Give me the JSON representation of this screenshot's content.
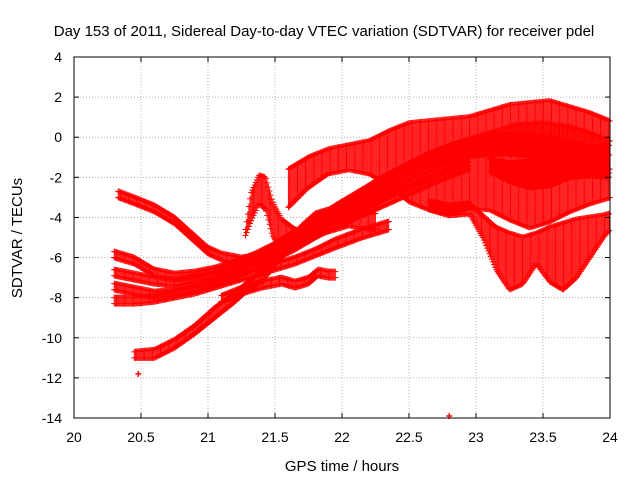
{
  "chart_data": {
    "type": "scatter",
    "title": "Day 153 of 2011, Sidereal Day-to-day VTEC variation (SDTVAR) for receiver pdel",
    "xlabel": "GPS time / hours",
    "ylabel": "SDTVAR / TECUs",
    "xlim": [
      20,
      24
    ],
    "ylim": [
      -14,
      4
    ],
    "xticks": [
      "20",
      "20.5",
      "21",
      "21.5",
      "22",
      "22.5",
      "23",
      "23.5",
      "24"
    ],
    "yticks": [
      "4",
      "2",
      "0",
      "-2",
      "-4",
      "-6",
      "-8",
      "-10",
      "-12",
      "-14"
    ],
    "grid": true,
    "legend": "none",
    "marker": "plus",
    "colors": {
      "series": "#ff0000",
      "grid": "#a0a0a0"
    },
    "tracks": [
      {
        "x": [
          20.33,
          20.45,
          20.6,
          20.75,
          20.9,
          21.0,
          21.1,
          21.25,
          21.45,
          21.6,
          21.75,
          21.9,
          22.05,
          22.25,
          22.45,
          22.65,
          22.85,
          23.0,
          23.2,
          23.4,
          23.6,
          23.8,
          24.0
        ],
        "lo": [
          -3.0,
          -3.3,
          -3.7,
          -4.3,
          -5.2,
          -5.8,
          -6.1,
          -6.4,
          -6.2,
          -5.6,
          -5.0,
          -4.3,
          -3.6,
          -2.8,
          -2.0,
          -1.4,
          -1.0,
          -0.9,
          -0.8,
          -0.9,
          -1.1,
          -1.4,
          -1.8
        ],
        "hi": [
          -2.7,
          -3.0,
          -3.4,
          -4.0,
          -4.9,
          -5.5,
          -5.8,
          -6.0,
          -5.8,
          -5.2,
          -4.6,
          -3.9,
          -3.1,
          -2.3,
          -1.5,
          -0.8,
          -0.3,
          -0.1,
          0.1,
          0.1,
          -0.1,
          -0.4,
          -0.9
        ]
      },
      {
        "x": [
          20.3,
          20.45,
          20.6,
          20.75,
          20.9,
          21.05,
          21.2,
          21.35,
          21.5,
          21.65,
          21.8,
          21.95,
          22.1,
          22.3,
          22.5,
          22.7,
          22.9,
          23.1,
          23.3,
          23.5,
          23.7,
          23.85,
          24.0
        ],
        "lo": [
          -6.0,
          -6.3,
          -6.9,
          -7.1,
          -7.0,
          -6.8,
          -6.5,
          -6.1,
          -5.6,
          -5.0,
          -4.4,
          -3.8,
          -3.2,
          -2.5,
          -1.8,
          -1.2,
          -0.7,
          -0.4,
          -0.3,
          -0.6,
          -1.0,
          -1.3,
          -1.6
        ],
        "hi": [
          -5.7,
          -6.0,
          -6.6,
          -6.8,
          -6.7,
          -6.5,
          -6.2,
          -5.8,
          -5.3,
          -4.7,
          -4.1,
          -3.4,
          -2.8,
          -2.0,
          -1.3,
          -0.7,
          -0.2,
          0.2,
          0.6,
          0.7,
          0.5,
          0.2,
          -0.2
        ]
      },
      {
        "x": [
          20.3,
          20.45,
          20.6,
          20.75,
          20.9,
          21.05,
          21.2,
          21.35,
          21.5,
          21.65,
          21.8,
          21.95,
          22.15,
          22.35,
          22.55,
          22.75,
          22.95
        ],
        "lo": [
          -6.9,
          -7.1,
          -7.3,
          -7.4,
          -7.2,
          -7.0,
          -6.7,
          -6.3,
          -5.8,
          -5.3,
          -4.7,
          -4.2,
          -3.7,
          -3.0,
          -2.4,
          -1.8,
          -1.4
        ],
        "hi": [
          -6.6,
          -6.8,
          -7.0,
          -7.1,
          -6.9,
          -6.7,
          -6.4,
          -6.0,
          -5.5,
          -5.0,
          -4.4,
          -3.8,
          -3.3,
          -2.6,
          -2.0,
          -1.4,
          -1.0
        ]
      },
      {
        "x": [
          20.3,
          20.45,
          20.6,
          20.75,
          20.9,
          21.05,
          21.2,
          21.35,
          21.5,
          21.65,
          21.8,
          21.95,
          22.15,
          22.35,
          22.55,
          22.75,
          22.95
        ],
        "lo": [
          -7.6,
          -7.8,
          -8.0,
          -7.9,
          -7.7,
          -7.4,
          -7.0,
          -6.6,
          -6.1,
          -5.6,
          -5.0,
          -4.5,
          -3.9,
          -3.3,
          -2.7,
          -2.1,
          -1.6
        ],
        "hi": [
          -7.3,
          -7.5,
          -7.7,
          -7.6,
          -7.4,
          -7.1,
          -6.7,
          -6.3,
          -5.8,
          -5.3,
          -4.7,
          -4.1,
          -3.5,
          -2.9,
          -2.3,
          -1.7,
          -1.2
        ]
      },
      {
        "x": [
          20.3,
          20.45,
          20.6,
          20.75,
          20.9,
          21.05,
          21.2,
          21.35,
          21.5,
          21.65,
          21.8,
          21.95,
          22.15,
          22.35
        ],
        "lo": [
          -8.3,
          -8.3,
          -8.2,
          -8.0,
          -7.8,
          -7.5,
          -7.2,
          -6.9,
          -6.6,
          -6.3,
          -5.9,
          -5.5,
          -5.0,
          -4.6
        ],
        "hi": [
          -8.0,
          -8.0,
          -7.9,
          -7.7,
          -7.5,
          -7.2,
          -6.9,
          -6.6,
          -6.3,
          -6.0,
          -5.6,
          -5.1,
          -4.6,
          -4.2
        ]
      },
      {
        "x": [
          20.45,
          20.6,
          20.75,
          20.9,
          21.05,
          21.2,
          21.3,
          21.4,
          21.5,
          21.6,
          21.7,
          21.8,
          21.9,
          22.05,
          22.25,
          22.45
        ],
        "lo": [
          -11.0,
          -11.0,
          -10.5,
          -9.8,
          -9.0,
          -8.2,
          -7.6,
          -7.2,
          -6.4,
          -5.6,
          -4.8,
          -4.3,
          -4.1,
          -3.8,
          -3.1,
          -2.4
        ],
        "hi": [
          -10.7,
          -10.6,
          -10.1,
          -9.4,
          -8.5,
          -7.8,
          -7.2,
          -6.7,
          -5.9,
          -5.1,
          -4.4,
          -3.8,
          -3.6,
          -3.1,
          -2.2,
          -1.5
        ]
      },
      {
        "x": [
          21.28,
          21.32,
          21.38,
          21.43,
          21.48,
          21.55,
          21.65,
          21.75,
          21.85,
          21.95,
          22.05,
          22.15,
          22.25
        ],
        "lo": [
          -4.9,
          -4.2,
          -3.3,
          -3.6,
          -4.9,
          -5.6,
          -5.4,
          -5.2,
          -4.8,
          -4.6,
          -4.4,
          -4.5,
          -4.6
        ],
        "hi": [
          -4.6,
          -2.8,
          -1.9,
          -2.0,
          -3.2,
          -4.1,
          -4.6,
          -4.7,
          -4.4,
          -4.1,
          -3.9,
          -3.9,
          -3.8
        ]
      },
      {
        "x": [
          21.1,
          21.25,
          21.4,
          21.55,
          21.65,
          21.75,
          21.82,
          21.9,
          21.95
        ],
        "lo": [
          -8.2,
          -7.8,
          -7.5,
          -7.3,
          -7.5,
          -7.3,
          -6.9,
          -7.0,
          -7.0
        ],
        "hi": [
          -7.9,
          -7.5,
          -7.2,
          -7.0,
          -7.2,
          -7.0,
          -6.6,
          -6.7,
          -6.7
        ]
      },
      {
        "x": [
          21.6,
          21.75,
          21.9,
          22.05,
          22.2,
          22.35,
          22.5,
          22.65,
          22.8,
          22.95,
          23.1,
          23.25,
          23.4,
          23.55,
          23.7,
          23.85,
          24.0
        ],
        "lo": [
          -3.5,
          -2.5,
          -1.8,
          -1.6,
          -1.8,
          -2.4,
          -3.2,
          -3.6,
          -3.8,
          -3.5,
          -3.6,
          -4.1,
          -4.5,
          -4.2,
          -3.7,
          -3.3,
          -3.0
        ],
        "hi": [
          -1.6,
          -1.0,
          -0.6,
          -0.4,
          -0.2,
          0.3,
          0.7,
          0.8,
          0.9,
          1.0,
          1.3,
          1.6,
          1.7,
          1.8,
          1.5,
          1.2,
          0.8
        ]
      },
      {
        "x": [
          22.65,
          22.8,
          22.95,
          23.05,
          23.15,
          23.25,
          23.35,
          23.45,
          23.55,
          23.65,
          23.75,
          23.85,
          23.95,
          24.0
        ],
        "lo": [
          -3.6,
          -3.9,
          -3.8,
          -5.0,
          -6.6,
          -7.6,
          -7.3,
          -6.3,
          -7.2,
          -7.6,
          -7.0,
          -6.0,
          -5.0,
          -4.6
        ],
        "hi": [
          -3.2,
          -3.4,
          -3.3,
          -3.9,
          -4.5,
          -4.8,
          -5.0,
          -4.8,
          -4.5,
          -4.3,
          -4.1,
          -4.0,
          -3.9,
          -3.8
        ]
      },
      {
        "x": [
          23.1,
          23.25,
          23.4,
          23.55,
          23.7,
          23.85,
          24.0
        ],
        "lo": [
          -1.7,
          -2.2,
          -2.5,
          -2.4,
          -2.0,
          -1.9,
          -2.0
        ],
        "hi": [
          -1.1,
          -1.3,
          -1.2,
          -0.9,
          -0.6,
          -0.5,
          -0.4
        ]
      }
    ],
    "isolated_points": [
      {
        "x": 20.48,
        "y": -11.8
      },
      {
        "x": 22.8,
        "y": -13.9
      }
    ]
  }
}
